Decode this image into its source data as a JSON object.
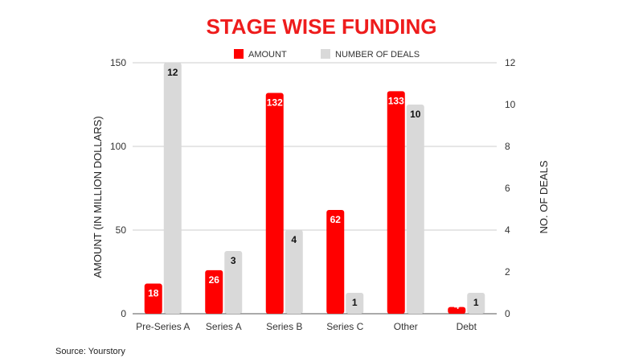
{
  "chart_data": {
    "type": "bar",
    "title": "STAGE WISE FUNDING",
    "categories": [
      "Pre-Series A",
      "Series A",
      "Series B",
      "Series C",
      "Other",
      "Debt"
    ],
    "series": [
      {
        "name": "AMOUNT",
        "axis": "left",
        "color": "#ff0000",
        "label_color": "#ffffff",
        "values": [
          18,
          26,
          132,
          62,
          133,
          4
        ]
      },
      {
        "name": "NUMBER OF DEALS",
        "axis": "right",
        "color": "#d9d9d9",
        "label_color": "#111111",
        "values": [
          12,
          3,
          4,
          1,
          10,
          1
        ]
      }
    ],
    "ylabel": "AMOUNT (IN MILLION DOLLARS)",
    "y2label": "NO. OF DEALS",
    "ylim": [
      0,
      150
    ],
    "y2lim": [
      0,
      12
    ],
    "yticks": [
      "0",
      "50",
      "100",
      "150"
    ],
    "y2ticks": [
      "0",
      "2",
      "4",
      "6",
      "8",
      "10",
      "12"
    ],
    "grid": true,
    "legend_position": "top-center",
    "title_color": "#ee1c1c",
    "source": "Source: Yourstory"
  }
}
